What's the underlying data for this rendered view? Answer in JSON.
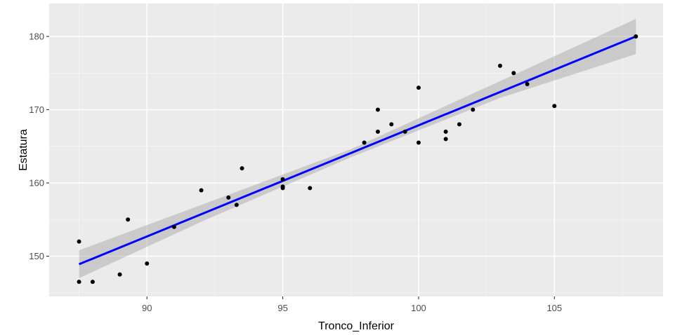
{
  "chart_data": {
    "type": "scatter",
    "title": "",
    "xlabel": "Tronco_Inferior",
    "ylabel": "Estatura",
    "xlim": [
      86.4,
      109.0
    ],
    "ylim": [
      144.5,
      184.5
    ],
    "x_ticks": [
      90,
      95,
      100,
      105
    ],
    "x_tick_labels": [
      "90",
      "95",
      "100",
      "105"
    ],
    "y_ticks": [
      150,
      160,
      170,
      180
    ],
    "y_tick_labels": [
      "150",
      "160",
      "170",
      "180"
    ],
    "grid": true,
    "legend": "none",
    "colors": {
      "panel": "#ebebeb",
      "grid_major": "#ffffff",
      "points": "#000000",
      "fit_line": "#0000ff",
      "confidence_band": "#999999"
    },
    "points": [
      {
        "x": 87.5,
        "y": 152.0
      },
      {
        "x": 87.5,
        "y": 146.5
      },
      {
        "x": 88.0,
        "y": 146.5
      },
      {
        "x": 89.0,
        "y": 147.5
      },
      {
        "x": 89.3,
        "y": 155.0
      },
      {
        "x": 90.0,
        "y": 149.0
      },
      {
        "x": 91.0,
        "y": 154.0
      },
      {
        "x": 92.0,
        "y": 159.0
      },
      {
        "x": 93.0,
        "y": 158.0
      },
      {
        "x": 93.3,
        "y": 157.0
      },
      {
        "x": 93.5,
        "y": 162.0
      },
      {
        "x": 95.0,
        "y": 160.5
      },
      {
        "x": 95.0,
        "y": 159.5
      },
      {
        "x": 95.0,
        "y": 159.3
      },
      {
        "x": 96.0,
        "y": 159.3
      },
      {
        "x": 98.0,
        "y": 165.5
      },
      {
        "x": 98.5,
        "y": 170.0
      },
      {
        "x": 98.5,
        "y": 167.0
      },
      {
        "x": 99.0,
        "y": 168.0
      },
      {
        "x": 99.5,
        "y": 167.0
      },
      {
        "x": 100.0,
        "y": 173.0
      },
      {
        "x": 100.0,
        "y": 165.5
      },
      {
        "x": 101.0,
        "y": 167.0
      },
      {
        "x": 101.0,
        "y": 166.0
      },
      {
        "x": 101.5,
        "y": 168.0
      },
      {
        "x": 102.0,
        "y": 170.0
      },
      {
        "x": 103.0,
        "y": 176.0
      },
      {
        "x": 103.5,
        "y": 175.0
      },
      {
        "x": 104.0,
        "y": 173.5
      },
      {
        "x": 105.0,
        "y": 170.5
      },
      {
        "x": 108.0,
        "y": 180.0
      }
    ],
    "fit_line": {
      "x": [
        87.5,
        108.0
      ],
      "y": [
        148.9,
        180.0
      ]
    },
    "confidence_band": {
      "x": [
        87.5,
        92.0,
        97.5,
        103.0,
        108.0
      ],
      "lower": [
        147.0,
        154.7,
        163.5,
        171.6,
        177.6
      ],
      "upper": [
        150.8,
        157.0,
        164.6,
        173.9,
        182.4
      ]
    }
  }
}
